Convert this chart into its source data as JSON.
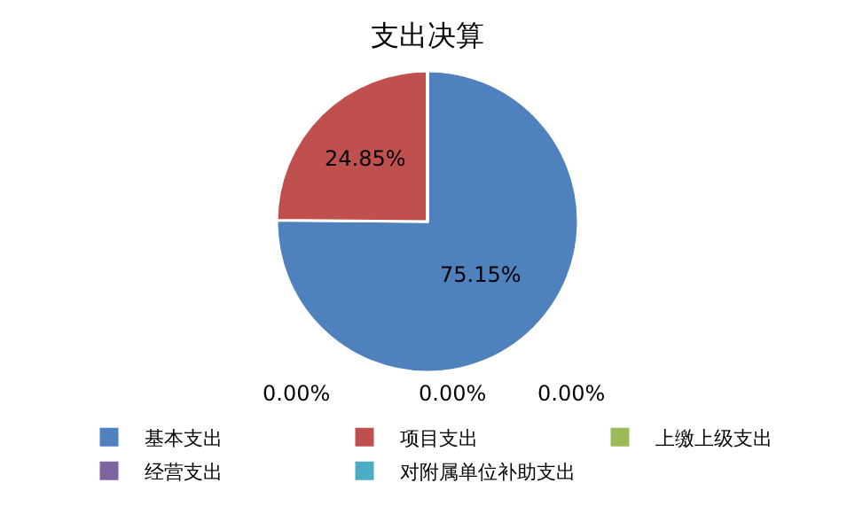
{
  "chart_data": {
    "type": "pie",
    "title": "支出决算",
    "categories": [
      "基本支出",
      "项目支出",
      "上缴上级支出",
      "经营支出",
      "对附属单位补助支出"
    ],
    "values": [
      75.15,
      24.85,
      0,
      0,
      0
    ],
    "value_labels": [
      "75.15%",
      "24.85%",
      "0.00%",
      "0.00%",
      "0.00%"
    ],
    "colors": [
      "#4f81bd",
      "#c0504d",
      "#9bbb59",
      "#8064a2",
      "#4bacc6"
    ],
    "legend": "bottom"
  }
}
